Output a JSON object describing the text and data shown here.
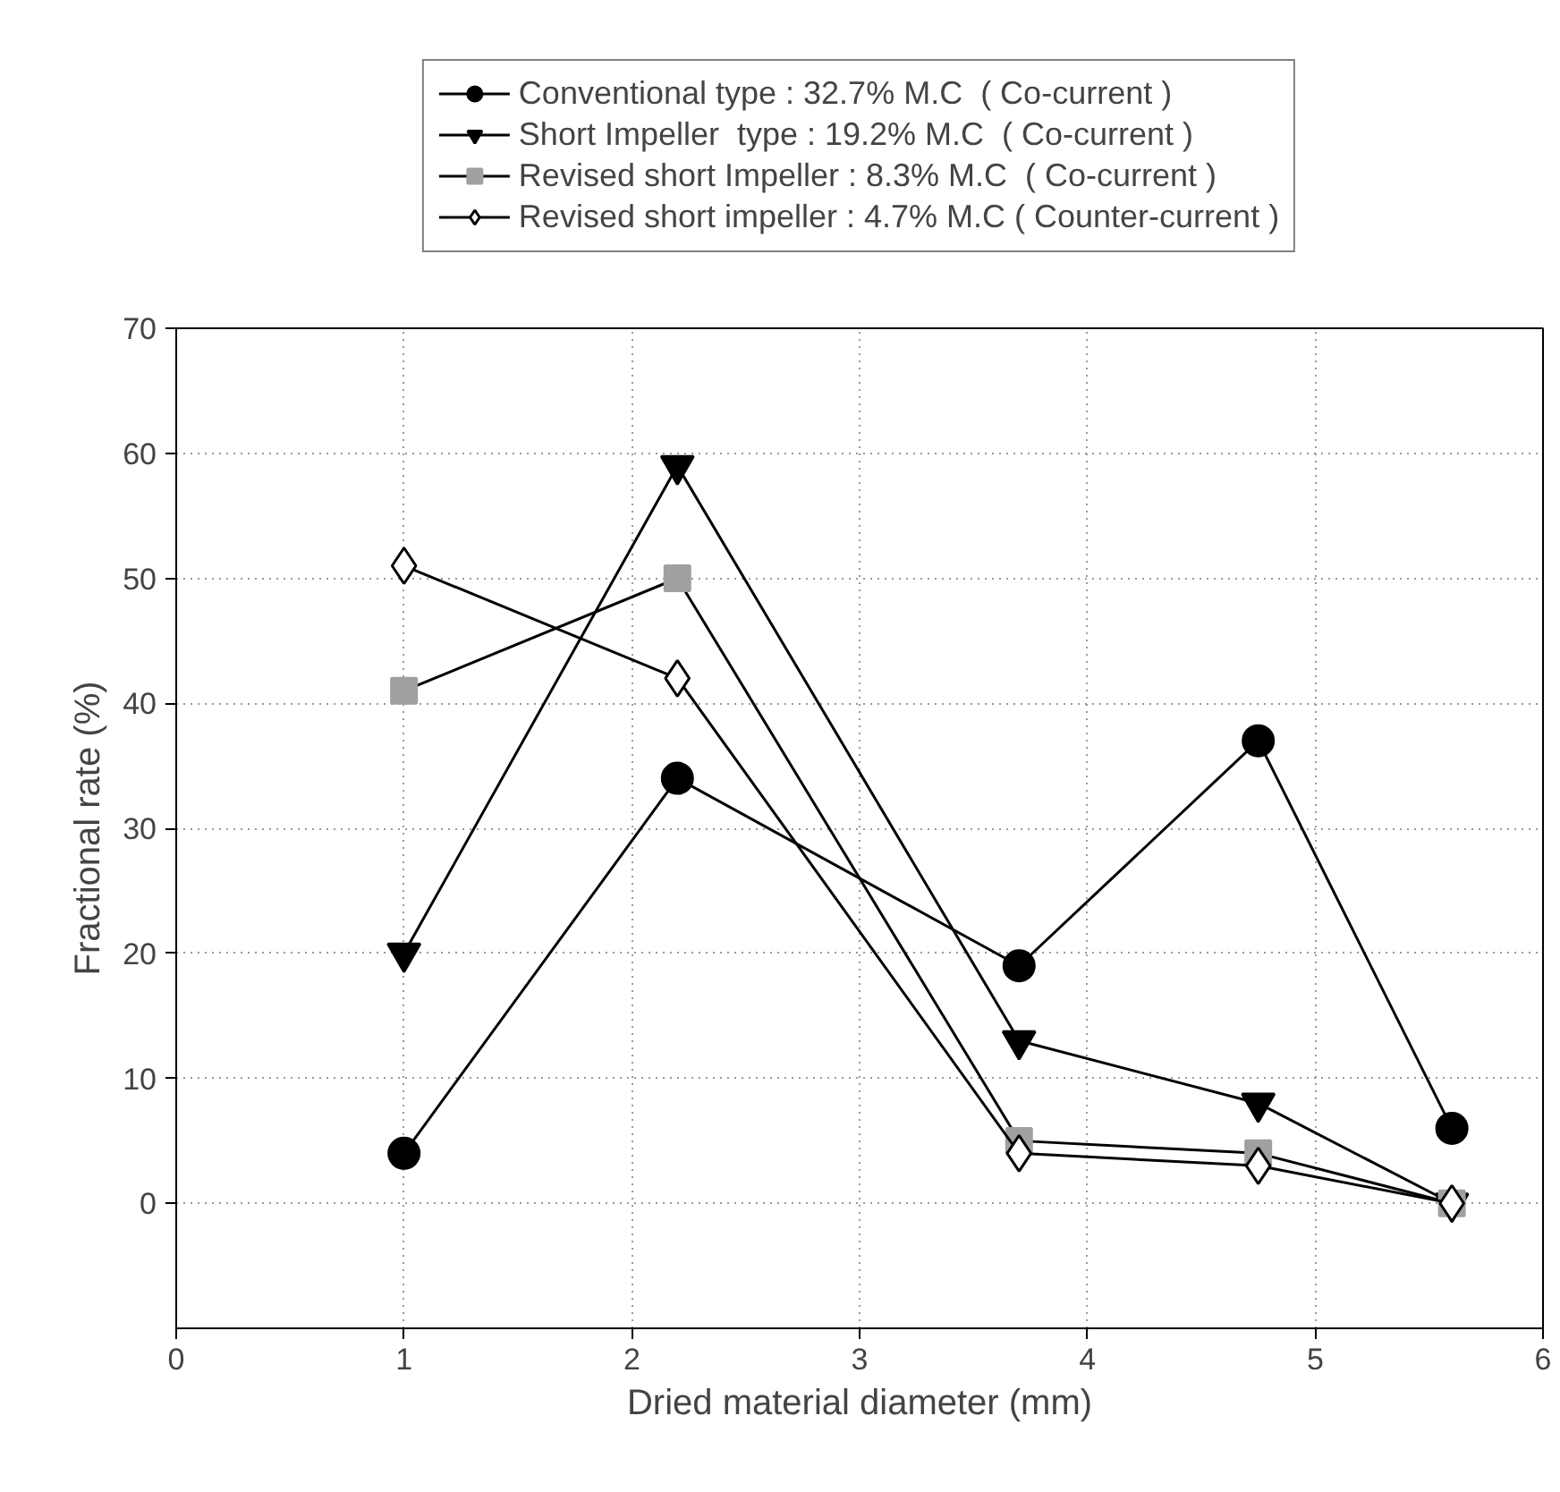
{
  "chart_data": {
    "type": "line",
    "xlabel": "Dried material diameter (mm)",
    "ylabel": "Fractional rate (%)",
    "x": [
      1,
      2.2,
      3.7,
      4.75,
      5.6
    ],
    "series": [
      {
        "name": "Conventional type : 32.7% M.C  ( Co-current )",
        "color": "#000000",
        "marker": "circle",
        "values": [
          4,
          34,
          19,
          37,
          6
        ]
      },
      {
        "name": "Short Impeller  type : 19.2% M.C  ( Co-current )",
        "color": "#000000",
        "marker": "triangle",
        "values": [
          20,
          59,
          13,
          8,
          0
        ]
      },
      {
        "name": "Revised short Impeller : 8.3% M.C  ( Co-current )",
        "color": "#a0a0a0",
        "marker": "square",
        "values": [
          41,
          50,
          5,
          4,
          0
        ]
      },
      {
        "name": "Revised short impeller : 4.7% M.C ( Counter-current )",
        "color": "#ffffff",
        "marker": "diamond",
        "values": [
          51,
          42,
          4,
          3,
          0
        ]
      }
    ],
    "xlim": [
      0,
      6
    ],
    "ylim": [
      -10,
      70
    ],
    "xticks": [
      0,
      1,
      2,
      3,
      4,
      5,
      6
    ],
    "yticks": [
      0,
      10,
      20,
      30,
      40,
      50,
      60,
      70
    ],
    "grid": true,
    "legend": "top",
    "line_style": "solid"
  }
}
